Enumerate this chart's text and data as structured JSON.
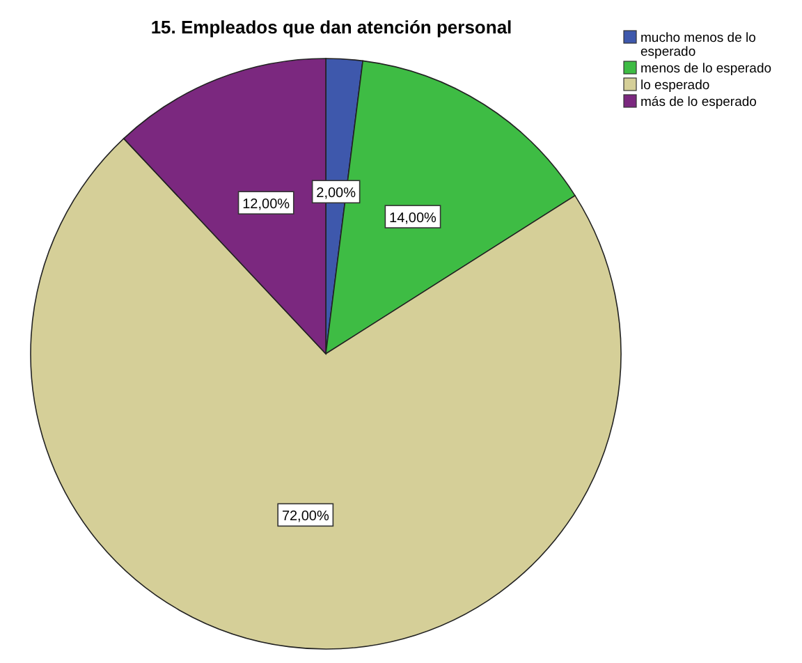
{
  "chart_data": {
    "type": "pie",
    "title": "15. Empleados que dan atención personal",
    "categories": [
      "mucho menos de lo esperado",
      "menos de lo esperado",
      "lo esperado",
      "más de lo esperado"
    ],
    "values": [
      2,
      14,
      72,
      12
    ],
    "colors": [
      "#3e58ac",
      "#3ebc44",
      "#d5cf98",
      "#7b287f"
    ],
    "value_labels": [
      "2,00%",
      "14,00%",
      "72,00%",
      "12,00%"
    ],
    "legend": "top right"
  }
}
